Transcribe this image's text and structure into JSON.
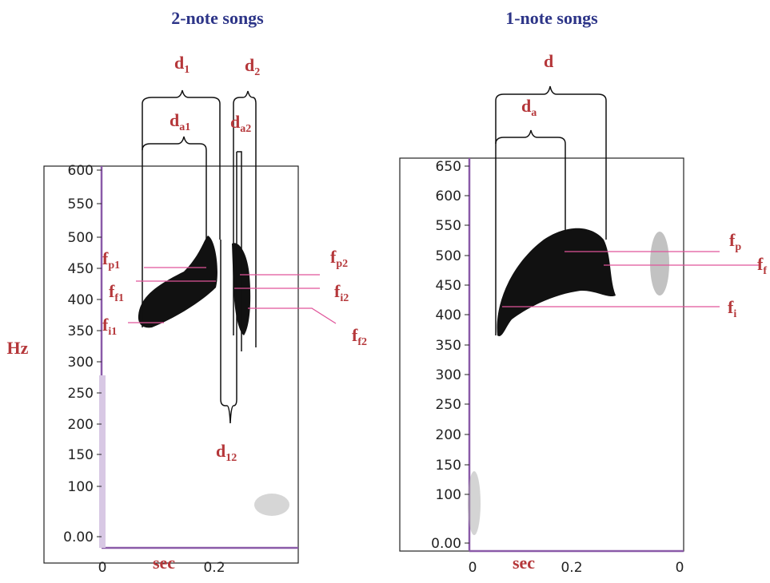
{
  "y_axis_label": "Hz",
  "panels": [
    {
      "title": "2-note songs",
      "x_axis_label": "sec",
      "yticks": [
        "600",
        "550",
        "500",
        "450",
        "400",
        "350",
        "300",
        "250",
        "200",
        "150",
        "100",
        "0.00"
      ],
      "xticks": [
        "0",
        "0.2"
      ],
      "annotations": [
        {
          "base": "d",
          "sub": "1"
        },
        {
          "base": "d",
          "sub": "2"
        },
        {
          "base": "d",
          "sub": "a1"
        },
        {
          "base": "d",
          "sub": "a2"
        },
        {
          "base": "d",
          "sub": "12"
        },
        {
          "base": "f",
          "sub": "p1"
        },
        {
          "base": "f",
          "sub": "f1"
        },
        {
          "base": "f",
          "sub": "i1"
        },
        {
          "base": "f",
          "sub": "p2"
        },
        {
          "base": "f",
          "sub": "i2"
        },
        {
          "base": "f",
          "sub": "f2"
        }
      ]
    },
    {
      "title": "1-note songs",
      "x_axis_label": "sec",
      "yticks": [
        "650",
        "600",
        "550",
        "500",
        "450",
        "400",
        "350",
        "300",
        "250",
        "200",
        "150",
        "100",
        "0.00"
      ],
      "xticks": [
        "0",
        "0.2",
        "0"
      ],
      "annotations": [
        {
          "base": "d",
          "sub": ""
        },
        {
          "base": "d",
          "sub": "a"
        },
        {
          "base": "f",
          "sub": "p"
        },
        {
          "base": "f",
          "sub": "f"
        },
        {
          "base": "f",
          "sub": "i"
        }
      ]
    }
  ]
}
